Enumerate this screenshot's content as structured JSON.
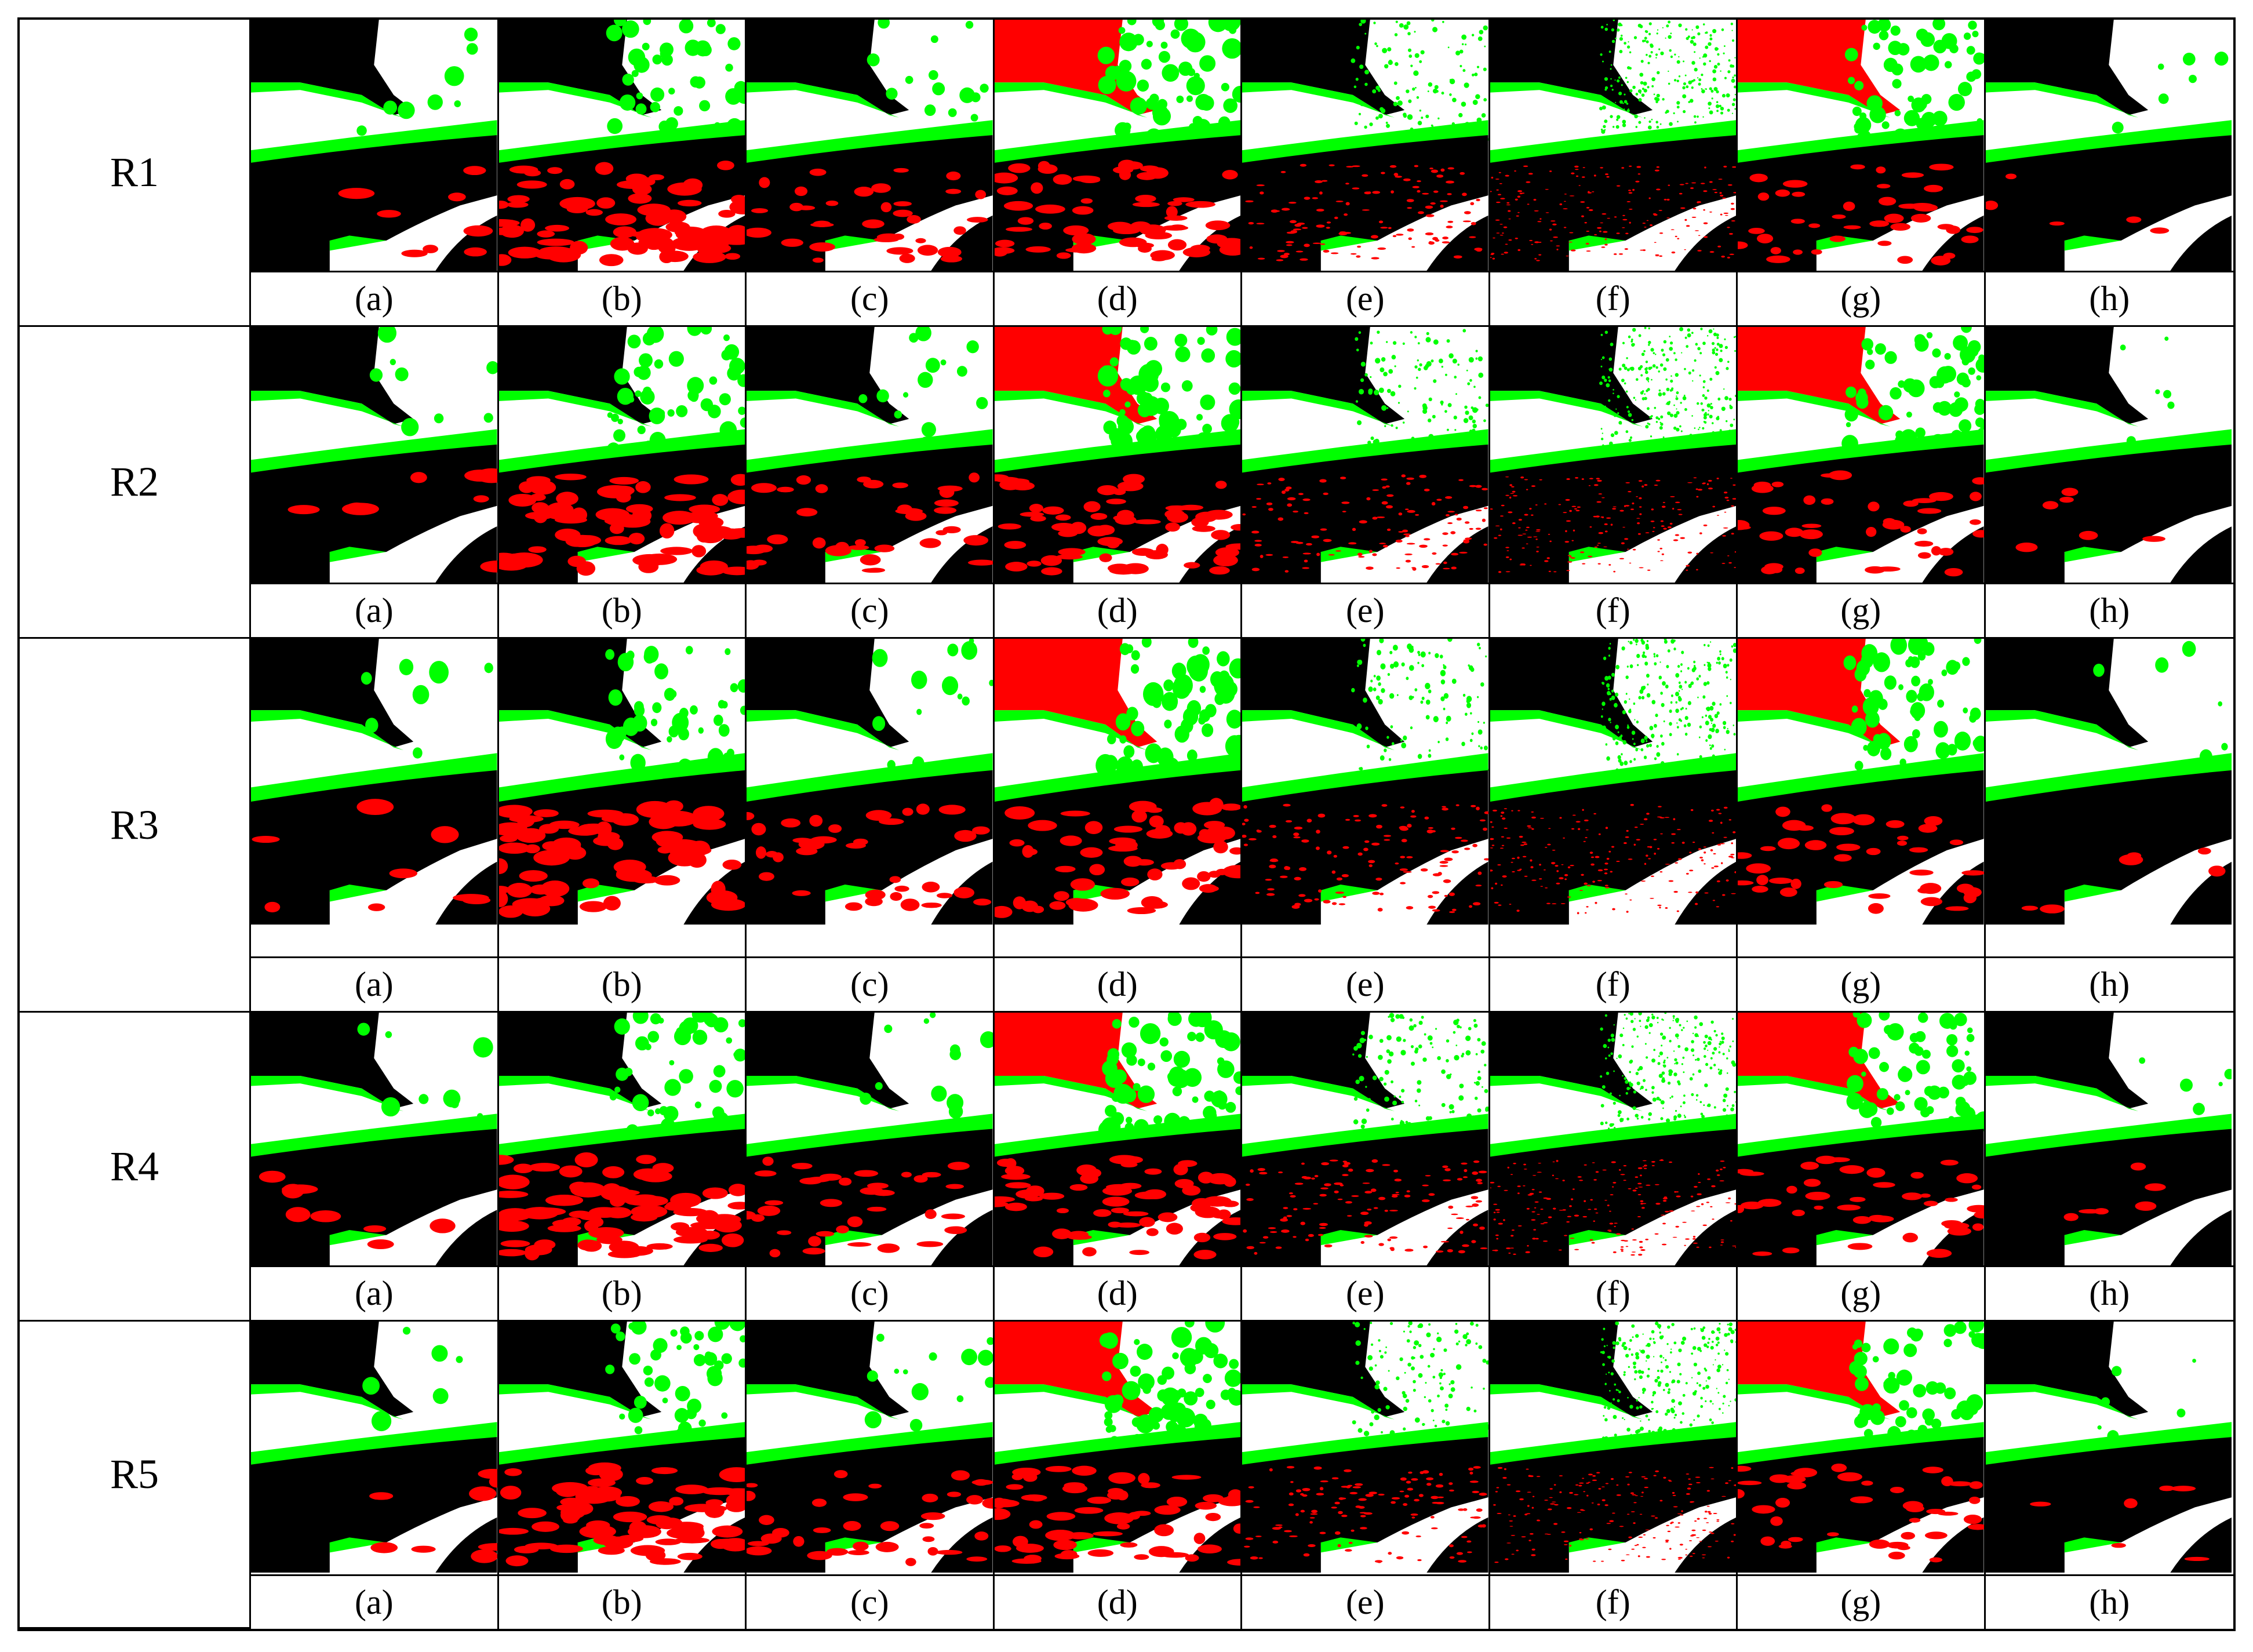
{
  "rows": [
    {
      "label": "R1",
      "captions": [
        "(a)",
        "(b)",
        "(c)",
        "(d)",
        "(e)",
        "(f)",
        "(g)",
        "(h)"
      ]
    },
    {
      "label": "R2",
      "captions": [
        "(a)",
        "(b)",
        "(c)",
        "(d)",
        "(e)",
        "(f)",
        "(g)",
        "(h)"
      ]
    },
    {
      "label": "R3",
      "captions": [
        "(a)",
        "(b)",
        "(c)",
        "(d)",
        "(e)",
        "(f)",
        "(g)",
        "(h)"
      ]
    },
    {
      "label": "R4",
      "captions": [
        "(a)",
        "(b)",
        "(c)",
        "(d)",
        "(e)",
        "(f)",
        "(g)",
        "(h)"
      ]
    },
    {
      "label": "R5",
      "captions": [
        "(a)",
        "(b)",
        "(c)",
        "(d)",
        "(e)",
        "(f)",
        "(g)",
        "(h)"
      ]
    }
  ]
}
